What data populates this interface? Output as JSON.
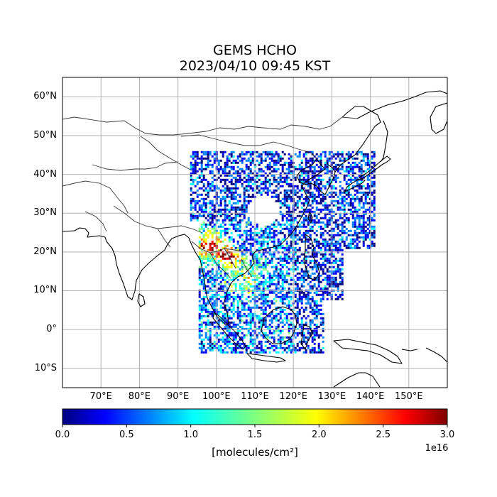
{
  "title": "GEMS HCHO",
  "subtitle": "2023/04/10 09:45 KST",
  "map": {
    "extent": {
      "lon": [
        60,
        160
      ],
      "lat": [
        -15,
        65
      ]
    },
    "lat_ticks": [
      {
        "value": 60,
        "label": "60°N"
      },
      {
        "value": 50,
        "label": "50°N"
      },
      {
        "value": 40,
        "label": "40°N"
      },
      {
        "value": 30,
        "label": "30°N"
      },
      {
        "value": 20,
        "label": "20°N"
      },
      {
        "value": 10,
        "label": "10°N"
      },
      {
        "value": 0,
        "label": "0°"
      },
      {
        "value": -10,
        "label": "10°S"
      }
    ],
    "lon_ticks": [
      {
        "value": 70,
        "label": "70°E"
      },
      {
        "value": 80,
        "label": "80°E"
      },
      {
        "value": 90,
        "label": "90°E"
      },
      {
        "value": 100,
        "label": "100°E"
      },
      {
        "value": 110,
        "label": "110°E"
      },
      {
        "value": 120,
        "label": "120°E"
      },
      {
        "value": 130,
        "label": "130°E"
      },
      {
        "value": 140,
        "label": "140°E"
      },
      {
        "value": 150,
        "label": "150°E"
      }
    ],
    "grid": true,
    "colormap": "jet",
    "coverage_region": {
      "lon": [
        95,
        141
      ],
      "lat": [
        -6,
        46
      ]
    }
  },
  "colorbar": {
    "range": [
      0.0,
      3.0
    ],
    "ticks": [
      "0.0",
      "0.5",
      "1.0",
      "1.5",
      "2.0",
      "2.5",
      "3.0"
    ],
    "units_label": "[molecules/cm²]",
    "exponent_label": "1e16",
    "colors": [
      "#00007f",
      "#0000ff",
      "#007fff",
      "#00ffff",
      "#7fff7f",
      "#ffff00",
      "#ff7f00",
      "#ff0000",
      "#7f0000"
    ]
  }
}
